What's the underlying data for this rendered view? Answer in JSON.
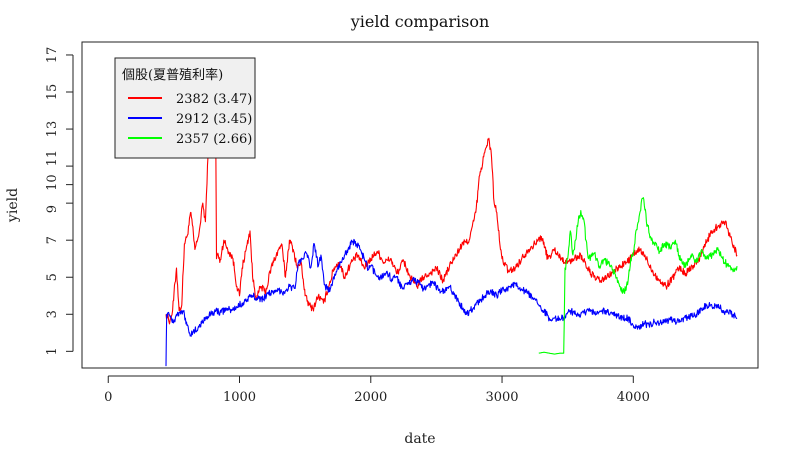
{
  "chart_data": {
    "type": "line",
    "title": "yield comparison",
    "xlabel": "date",
    "ylabel": "yield",
    "xlim": [
      -200,
      4950
    ],
    "ylim": [
      0.1,
      17.7
    ],
    "x_ticks": [
      0,
      1000,
      2000,
      3000,
      4000
    ],
    "x_tick_labels": [
      "0",
      "1000",
      "2000",
      "3000",
      "4000"
    ],
    "y_ticks": [
      1,
      3,
      5,
      7,
      9,
      10,
      11,
      13,
      15,
      17
    ],
    "y_tick_labels": [
      "1",
      "3",
      "5",
      "7",
      "9",
      "10",
      "11",
      "13",
      "15",
      "17"
    ],
    "grid": false,
    "legend": {
      "title": "個股(夏普殖利率)",
      "position": "top-left",
      "entries": [
        "2382 (3.47)",
        "2912 (3.45)",
        "2357 (2.66)"
      ]
    },
    "series": [
      {
        "name": "2382 (3.47)",
        "color": "#ff0000",
        "x": [
          440,
          470,
          490,
          520,
          540,
          560,
          580,
          600,
          630,
          660,
          680,
          700,
          720,
          740,
          760,
          780,
          800,
          815,
          825,
          835,
          850,
          880,
          910,
          950,
          980,
          1000,
          1020,
          1050,
          1080,
          1100,
          1130,
          1160,
          1200,
          1240,
          1280,
          1320,
          1350,
          1380,
          1410,
          1440,
          1470,
          1500,
          1530,
          1560,
          1600,
          1640,
          1680,
          1720,
          1760,
          1800,
          1850,
          1900,
          1950,
          2000,
          2050,
          2100,
          2150,
          2200,
          2250,
          2300,
          2350,
          2400,
          2450,
          2500,
          2550,
          2600,
          2650,
          2700,
          2750,
          2800,
          2830,
          2860,
          2880,
          2900,
          2920,
          2940,
          2960,
          2980,
          3000,
          3050,
          3100,
          3150,
          3200,
          3250,
          3300,
          3350,
          3400,
          3450,
          3500,
          3550,
          3600,
          3650,
          3700,
          3750,
          3800,
          3850,
          3900,
          3950,
          4000,
          4050,
          4100,
          4150,
          4200,
          4250,
          4300,
          4350,
          4400,
          4450,
          4500,
          4550,
          4600,
          4650,
          4700,
          4750,
          4790
        ],
        "y": [
          3.0,
          2.6,
          3.2,
          5.5,
          3.2,
          3.5,
          6.8,
          7.2,
          8.5,
          6.5,
          7.0,
          7.8,
          9.0,
          8.0,
          11.5,
          12.0,
          11.5,
          16.8,
          6.0,
          6.3,
          5.8,
          7.0,
          6.5,
          6.0,
          4.5,
          4.0,
          5.5,
          6.5,
          7.5,
          5.0,
          3.8,
          4.5,
          4.2,
          5.5,
          6.2,
          6.8,
          5.0,
          7.0,
          6.5,
          5.5,
          5.8,
          4.0,
          3.5,
          3.3,
          4.0,
          3.6,
          4.5,
          5.5,
          5.8,
          5.0,
          5.8,
          6.2,
          5.5,
          6.0,
          6.4,
          5.8,
          6.0,
          5.2,
          5.9,
          5.0,
          4.5,
          5.0,
          5.2,
          5.5,
          4.8,
          5.6,
          6.2,
          6.8,
          7.0,
          8.5,
          10.5,
          11.5,
          12.0,
          12.5,
          11.5,
          9.0,
          8.5,
          7.0,
          6.0,
          5.3,
          5.5,
          6.0,
          6.5,
          6.8,
          7.2,
          6.0,
          6.5,
          6.0,
          5.8,
          6.0,
          6.2,
          5.5,
          5.0,
          4.8,
          5.0,
          5.3,
          5.6,
          5.8,
          6.2,
          6.5,
          6.0,
          5.3,
          4.8,
          4.5,
          5.0,
          5.5,
          5.2,
          5.6,
          6.0,
          6.8,
          7.5,
          7.8,
          8.0,
          7.0,
          6.2
        ]
      },
      {
        "name": "2912 (3.45)",
        "color": "#0000ff",
        "x": [
          440,
          445,
          460,
          480,
          500,
          520,
          540,
          560,
          580,
          600,
          620,
          640,
          660,
          700,
          740,
          780,
          820,
          860,
          900,
          940,
          980,
          1020,
          1060,
          1100,
          1140,
          1180,
          1220,
          1260,
          1300,
          1340,
          1380,
          1420,
          1450,
          1480,
          1510,
          1540,
          1570,
          1600,
          1620,
          1650,
          1680,
          1710,
          1740,
          1770,
          1800,
          1830,
          1860,
          1890,
          1920,
          1950,
          1980,
          2000,
          2040,
          2080,
          2120,
          2160,
          2200,
          2240,
          2280,
          2320,
          2360,
          2400,
          2440,
          2480,
          2520,
          2560,
          2600,
          2640,
          2680,
          2700,
          2730,
          2760,
          2800,
          2840,
          2880,
          2920,
          2960,
          3000,
          3040,
          3080,
          3120,
          3160,
          3200,
          3240,
          3280,
          3320,
          3360,
          3400,
          3440,
          3480,
          3520,
          3560,
          3600,
          3640,
          3680,
          3720,
          3760,
          3800,
          3840,
          3880,
          3920,
          3960,
          4000,
          4040,
          4080,
          4120,
          4160,
          4200,
          4240,
          4280,
          4320,
          4360,
          4400,
          4440,
          4480,
          4520,
          4560,
          4600,
          4640,
          4680,
          4720,
          4760,
          4790
        ],
        "y": [
          0.2,
          3.0,
          3.1,
          2.8,
          2.6,
          3.0,
          3.1,
          3.2,
          3.0,
          2.4,
          2.0,
          1.9,
          2.1,
          2.4,
          2.8,
          3.0,
          3.2,
          3.1,
          3.3,
          3.2,
          3.4,
          3.6,
          3.8,
          4.0,
          3.9,
          3.8,
          4.2,
          4.1,
          4.3,
          4.2,
          4.5,
          4.4,
          5.8,
          6.0,
          6.3,
          5.5,
          6.8,
          5.6,
          6.2,
          4.6,
          4.2,
          4.8,
          5.3,
          5.8,
          6.2,
          6.6,
          6.9,
          6.8,
          6.5,
          6.0,
          5.4,
          5.6,
          5.1,
          5.0,
          5.3,
          4.9,
          5.0,
          4.4,
          4.6,
          4.9,
          4.7,
          4.4,
          4.6,
          4.7,
          4.3,
          4.2,
          4.5,
          4.0,
          3.6,
          3.3,
          3.0,
          3.2,
          3.5,
          3.8,
          4.1,
          4.2,
          4.0,
          4.3,
          4.4,
          4.6,
          4.5,
          4.3,
          4.1,
          3.8,
          3.5,
          3.2,
          2.8,
          2.8,
          2.7,
          2.9,
          3.2,
          3.0,
          3.0,
          3.1,
          3.2,
          3.0,
          3.2,
          3.1,
          3.0,
          2.9,
          2.8,
          2.8,
          2.4,
          2.3,
          2.5,
          2.4,
          2.6,
          2.5,
          2.6,
          2.7,
          2.6,
          2.6,
          2.8,
          2.9,
          3.0,
          3.3,
          3.5,
          3.4,
          3.5,
          3.2,
          3.1,
          3.0,
          2.8
        ]
      },
      {
        "name": "2357 (2.66)",
        "color": "#00ff00",
        "x": [
          3280,
          3320,
          3360,
          3400,
          3440,
          3470,
          3480,
          3500,
          3520,
          3540,
          3560,
          3580,
          3600,
          3620,
          3640,
          3660,
          3700,
          3740,
          3780,
          3820,
          3860,
          3900,
          3930,
          3960,
          3980,
          4000,
          4020,
          4040,
          4060,
          4080,
          4100,
          4130,
          4160,
          4200,
          4240,
          4280,
          4320,
          4360,
          4400,
          4440,
          4480,
          4520,
          4560,
          4600,
          4640,
          4680,
          4720,
          4760,
          4790
        ],
        "y": [
          0.9,
          0.95,
          0.9,
          0.85,
          0.9,
          0.9,
          5.5,
          6.0,
          7.5,
          6.2,
          7.0,
          8.0,
          8.6,
          8.2,
          7.0,
          6.0,
          6.3,
          5.5,
          6.0,
          5.6,
          5.2,
          4.5,
          4.2,
          4.8,
          6.0,
          6.3,
          7.5,
          8.0,
          9.0,
          9.2,
          8.0,
          7.2,
          6.8,
          6.4,
          6.8,
          6.6,
          7.0,
          5.9,
          5.6,
          6.2,
          5.8,
          6.5,
          6.0,
          6.2,
          6.5,
          6.0,
          5.6,
          5.3,
          5.6
        ]
      }
    ]
  }
}
